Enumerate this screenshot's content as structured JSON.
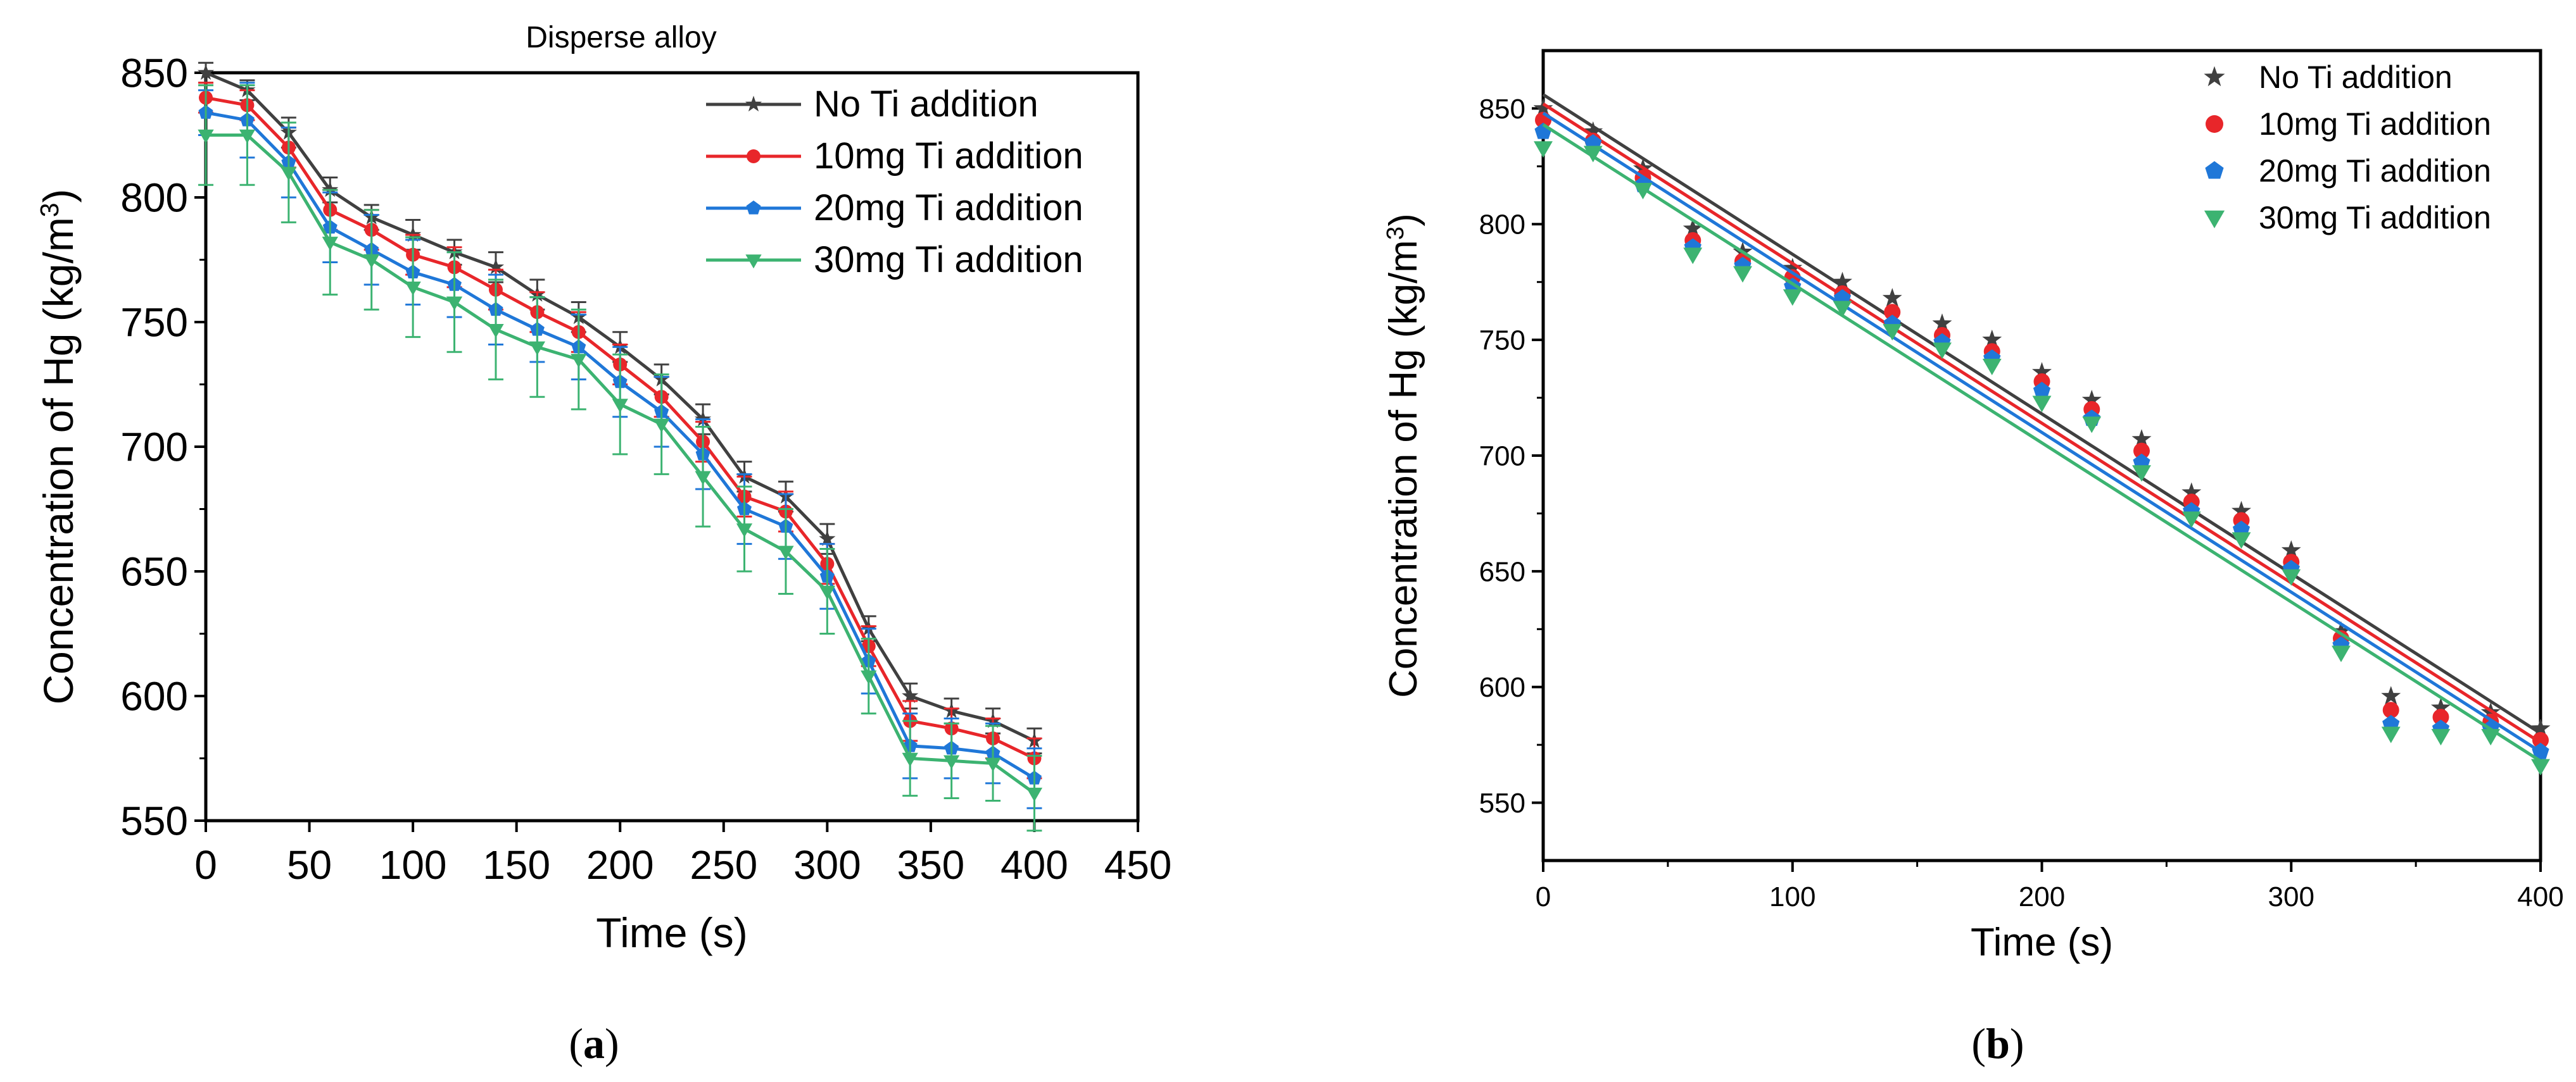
{
  "chart_data": [
    {
      "panel": "a",
      "type": "line",
      "title": "Disperse alloy",
      "xlabel": "Time (s)",
      "ylabel_main": "Concentration of Hg (kg/m",
      "ylabel_sup": "3",
      "ylabel_tail": ")",
      "caption_open": "(",
      "caption_letter": "a",
      "caption_close": ")",
      "xlim": [
        0,
        450
      ],
      "ylim": [
        550,
        850
      ],
      "xticks": [
        0,
        50,
        100,
        150,
        200,
        250,
        300,
        350,
        400,
        450
      ],
      "yticks": [
        550,
        600,
        650,
        700,
        750,
        800,
        850
      ],
      "legend_position": "top-right",
      "x": [
        0,
        20,
        40,
        60,
        80,
        100,
        120,
        140,
        160,
        180,
        200,
        220,
        240,
        260,
        280,
        300,
        320,
        340,
        360,
        380,
        400
      ],
      "series": [
        {
          "name": "No Ti addition",
          "color": "#404040",
          "marker": "star",
          "values": [
            850,
            843,
            826,
            803,
            792,
            785,
            778,
            772,
            761,
            752,
            740,
            727,
            711,
            688,
            680,
            663,
            627,
            600,
            594,
            590,
            582
          ],
          "errors": [
            4,
            4,
            6,
            5,
            5,
            6,
            5,
            6,
            6,
            6,
            6,
            6,
            6,
            6,
            6,
            6,
            5,
            5,
            5,
            5,
            5
          ]
        },
        {
          "name": "10mg Ti addition",
          "color": "#e8262a",
          "marker": "circle",
          "values": [
            840,
            837,
            820,
            795,
            787,
            777,
            772,
            763,
            754,
            746,
            733,
            720,
            702,
            680,
            674,
            653,
            620,
            590,
            587,
            583,
            575
          ],
          "errors": [
            6,
            6,
            8,
            8,
            8,
            8,
            8,
            8,
            8,
            8,
            8,
            8,
            8,
            8,
            8,
            8,
            8,
            8,
            8,
            8,
            8
          ]
        },
        {
          "name": "20mg Ti addition",
          "color": "#1f77d8",
          "marker": "pentagon",
          "values": [
            834,
            831,
            814,
            788,
            779,
            770,
            765,
            755,
            747,
            740,
            726,
            714,
            697,
            675,
            668,
            648,
            614,
            580,
            579,
            577,
            567
          ],
          "errors": [
            9,
            15,
            14,
            14,
            14,
            13,
            13,
            14,
            13,
            13,
            14,
            14,
            14,
            14,
            13,
            13,
            13,
            13,
            12,
            12,
            12
          ]
        },
        {
          "name": "30mg Ti addition",
          "color": "#3cb371",
          "marker": "triangle-down",
          "values": [
            825,
            825,
            810,
            782,
            775,
            764,
            758,
            747,
            740,
            735,
            717,
            709,
            688,
            667,
            658,
            642,
            608,
            575,
            574,
            573,
            561
          ],
          "errors": [
            20,
            20,
            20,
            21,
            20,
            20,
            20,
            20,
            20,
            20,
            20,
            20,
            20,
            17,
            17,
            17,
            15,
            15,
            15,
            15,
            15
          ]
        }
      ]
    },
    {
      "panel": "b",
      "type": "scatter",
      "title": "",
      "xlabel": "Time (s)",
      "ylabel_main": "Concentration of Hg (kg/m",
      "ylabel_sup": "3",
      "ylabel_tail": ")",
      "caption_open": "(",
      "caption_letter": "b",
      "caption_close": ")",
      "xlim": [
        0,
        400
      ],
      "ylim": [
        525,
        875
      ],
      "xticks": [
        0,
        100,
        200,
        300,
        400
      ],
      "yticks": [
        550,
        600,
        650,
        700,
        750,
        800,
        850
      ],
      "legend_position": "top-right",
      "x": [
        0,
        20,
        40,
        60,
        80,
        100,
        120,
        140,
        160,
        180,
        200,
        220,
        240,
        260,
        280,
        300,
        320,
        340,
        360,
        380,
        400
      ],
      "series": [
        {
          "name": "No Ti addition",
          "color": "#404040",
          "marker": "star",
          "values": [
            850,
            840,
            824,
            798,
            788,
            781,
            775,
            768,
            757,
            750,
            736,
            724,
            707,
            684,
            676,
            659,
            624,
            596,
            591,
            589,
            582
          ],
          "fit": [
            856,
            580
          ]
        },
        {
          "name": "10mg Ti addition",
          "color": "#e8262a",
          "marker": "circle",
          "values": [
            845,
            836,
            820,
            793,
            784,
            777,
            770,
            762,
            752,
            745,
            732,
            720,
            702,
            680,
            672,
            654,
            621,
            590,
            587,
            585,
            577
          ],
          "fit": [
            852,
            576
          ]
        },
        {
          "name": "20mg Ti addition",
          "color": "#1f77d8",
          "marker": "pentagon",
          "values": [
            840,
            835,
            817,
            790,
            782,
            773,
            768,
            757,
            749,
            742,
            728,
            716,
            697,
            676,
            668,
            651,
            618,
            584,
            582,
            582,
            572
          ],
          "fit": [
            848,
            572
          ]
        },
        {
          "name": "30mg Ti addition",
          "color": "#3cb371",
          "marker": "triangle-down",
          "values": [
            833,
            831,
            815,
            787,
            779,
            769,
            764,
            754,
            746,
            739,
            723,
            714,
            693,
            673,
            664,
            648,
            615,
            580,
            579,
            579,
            566
          ],
          "fit": [
            843,
            568
          ]
        }
      ]
    }
  ]
}
